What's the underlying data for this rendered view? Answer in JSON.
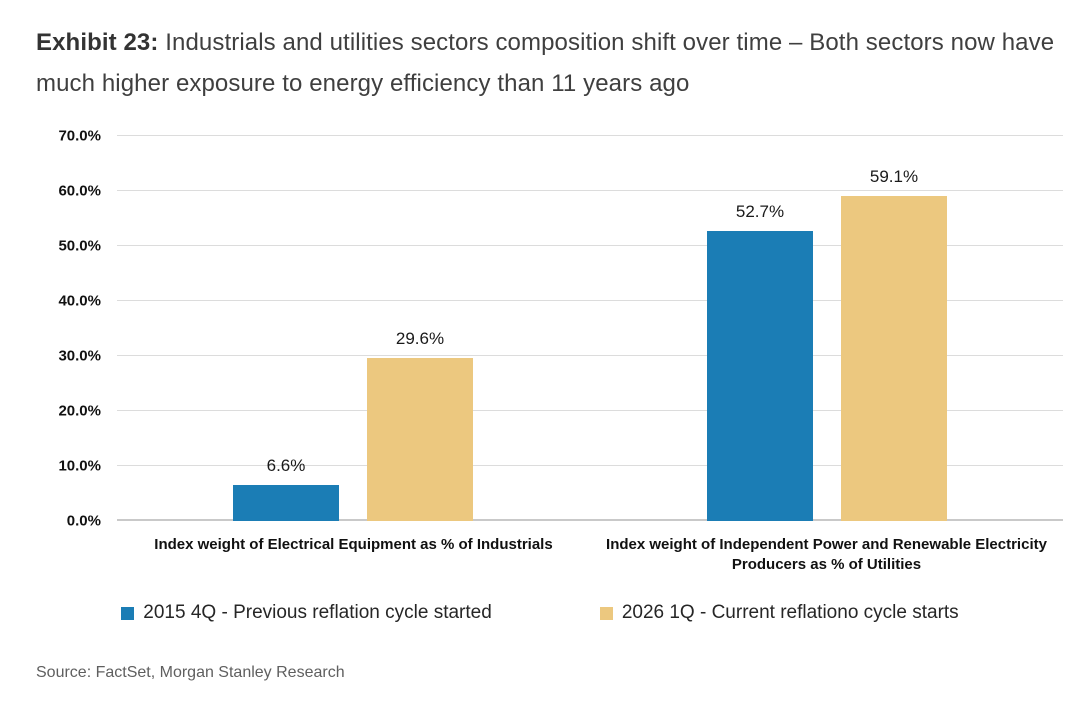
{
  "exhibit": {
    "label": "Exhibit 23:",
    "title": "Industrials and utilities sectors composition shift over time – Both sectors now have much higher exposure to energy efficiency than 11 years ago"
  },
  "source": "Source: FactSet, Morgan Stanley Research",
  "colors": {
    "series_2015": "#1b7db5",
    "series_2026": "#ecc87f",
    "gridline": "#dcdcdc",
    "axis_line": "#c9c9c9",
    "title_text": "#3f3f3f",
    "source_text": "#5f5f5f",
    "label_text": "#111111"
  },
  "chart_data": {
    "type": "bar",
    "title": "Industrials and utilities sectors composition shift over time – Both sectors now have much higher exposure to energy efficiency than 11 years ago",
    "categories": [
      "Index weight of Electrical Equipment as % of Industrials",
      "Index weight of Independent Power and Renewable Electricity Producers as % of Utilities"
    ],
    "series": [
      {
        "name": "2015 4Q - Previous reflation cycle started",
        "color": "#1b7db5",
        "values": [
          6.6,
          52.7
        ],
        "labels": [
          "6.6%",
          "52.7%"
        ]
      },
      {
        "name": "2026 1Q - Current reflationo cycle starts",
        "color": "#ecc87f",
        "values": [
          29.6,
          59.1
        ],
        "labels": [
          "29.6%",
          "59.1%"
        ]
      }
    ],
    "xlabel": "",
    "ylabel": "",
    "ylim": [
      0,
      70
    ],
    "yticks": [
      0,
      10,
      20,
      30,
      40,
      50,
      60,
      70
    ],
    "ytick_labels": [
      "0.0%",
      "10.0%",
      "20.0%",
      "30.0%",
      "40.0%",
      "50.0%",
      "60.0%",
      "70.0%"
    ],
    "grid": "horizontal",
    "legend_position": "bottom",
    "data_label_format": "0.0%"
  }
}
